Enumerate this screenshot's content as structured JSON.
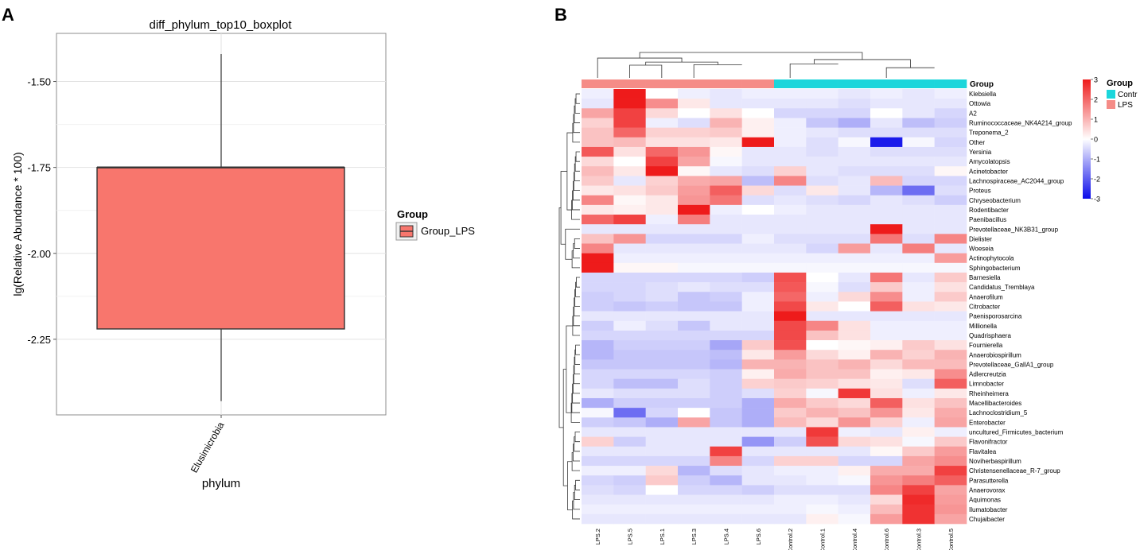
{
  "panel_a": {
    "letter": "A",
    "legend_title": "Group",
    "legend_label": "Group_LPS",
    "box_color": "#F8766D"
  },
  "panel_b": {
    "letter": "B",
    "group_header": "Group",
    "legend_group_title": "Group",
    "legend_items": [
      {
        "label": "Contr",
        "color": "#1BD6DB"
      },
      {
        "label": "LPS",
        "color": "#F58C87"
      }
    ],
    "colorbar_ticks": [
      "3",
      "2",
      "1",
      "0",
      "-1",
      "-2",
      "-3"
    ],
    "colors": {
      "low": "#0B0BEA",
      "mid": "#FFFFFF",
      "high": "#EE1B1B"
    }
  },
  "chart_data": [
    {
      "type": "box",
      "title": "diff_phylum_top10_boxplot",
      "xlabel": "phylum",
      "ylabel": "lg(Relative Abundance * 100)",
      "categories": [
        "Elusimicrobia"
      ],
      "ylim": [
        -2.47,
        -1.36
      ],
      "yticks": [
        -1.5,
        -1.75,
        -2.0,
        -2.25
      ],
      "ytick_labels": [
        "-1.50",
        "-1.75",
        "-2.00",
        "-2.25"
      ],
      "series": [
        {
          "name": "Group_LPS",
          "whisker_low": -2.43,
          "q1": -2.22,
          "median": -1.75,
          "q3": -1.75,
          "whisker_high": -1.42
        }
      ]
    },
    {
      "type": "heatmap",
      "columns": [
        "LPS.2",
        "LPS.5",
        "LPS.1",
        "LPS.3",
        "LPS.4",
        "LPS.6",
        "Control.2",
        "Control.1",
        "Control.4",
        "Control.6",
        "Control.3",
        "Control.5"
      ],
      "column_groups": [
        "LPS",
        "LPS",
        "LPS",
        "LPS",
        "LPS",
        "LPS",
        "Control",
        "Control",
        "Control",
        "Control",
        "Control",
        "Control"
      ],
      "rows": [
        "Klebsiella",
        "Ottowia",
        "A2",
        "Ruminococcaceae_NK4A214_group",
        "Treponema_2",
        "Other",
        "Yersinia",
        "Amycolatopsis",
        "Acinetobacter",
        "Lachnospiraceae_AC2044_group",
        "Proteus",
        "Chryseobacterium",
        "Rodentibacter",
        "Paenibacillus",
        "Prevotellaceae_NK3B31_group",
        "Dielister",
        "Woeseia",
        "Actinophytocola",
        "Sphingobacterium",
        "Barnesiella",
        "Candidatus_Tremblaya",
        "Anaerofilum",
        "Citrobacter",
        "Paenisporosarcina",
        "Millionella",
        "Quadrisphaera",
        "Fournierella",
        "Anaerobiospirillum",
        "Prevotellaceae_GallA1_group",
        "Adlercreutzia",
        "Limnobacter",
        "Rheinheimera",
        "Macellibacteroides",
        "Lachnoclostridium_5",
        "Enterobacter",
        "uncultured_Firmicutes_bacterium",
        "Flavonifractor",
        "Flavitalea",
        "Noviherbaspirillum",
        "Christensenellaceae_R-7_group",
        "Parasutterella",
        "Anaerovorax",
        "Aquimonas",
        "Ilumatobacter",
        "Chujaibacter"
      ],
      "values": [
        [
          -0.2,
          3.0,
          0.0,
          -0.2,
          -0.3,
          -0.2,
          -0.2,
          -0.2,
          -0.3,
          -0.2,
          -0.3,
          -0.2
        ],
        [
          -0.3,
          3.0,
          1.5,
          0.3,
          -0.3,
          -0.3,
          -0.3,
          -0.3,
          -0.4,
          -0.3,
          -0.3,
          -0.3
        ],
        [
          1.2,
          2.5,
          0.5,
          0.0,
          0.4,
          0.0,
          -0.5,
          -0.5,
          -0.5,
          0.0,
          -0.3,
          -0.5
        ],
        [
          0.6,
          2.5,
          -0.2,
          -0.4,
          1.0,
          0.2,
          -0.2,
          -0.7,
          -1.0,
          -0.3,
          -0.8,
          -0.6
        ],
        [
          0.8,
          2.0,
          0.6,
          0.6,
          0.7,
          0.2,
          -0.2,
          -0.3,
          -0.4,
          -0.4,
          -0.4,
          -0.4
        ],
        [
          0.8,
          0.9,
          0.4,
          0.4,
          0.3,
          3.0,
          -0.2,
          -0.4,
          -0.1,
          -2.8,
          -0.1,
          -0.5
        ],
        [
          2.2,
          0.4,
          2.0,
          1.4,
          0.1,
          -0.3,
          -0.3,
          -0.4,
          -0.3,
          -0.4,
          -0.4,
          -0.4
        ],
        [
          0.5,
          0.0,
          2.5,
          1.2,
          -0.1,
          -0.3,
          -0.3,
          -0.3,
          -0.3,
          -0.3,
          -0.3,
          -0.3
        ],
        [
          0.9,
          0.3,
          3.0,
          0.1,
          -0.3,
          -0.4,
          0.6,
          -0.3,
          -0.4,
          -0.4,
          -0.4,
          0.1
        ],
        [
          0.7,
          -0.3,
          0.6,
          1.1,
          1.2,
          -0.8,
          1.6,
          -0.4,
          -0.3,
          0.9,
          -0.5,
          -0.5
        ],
        [
          0.3,
          0.4,
          0.7,
          1.3,
          2.1,
          0.5,
          -0.4,
          0.3,
          -0.3,
          -0.9,
          -1.8,
          -0.4
        ],
        [
          1.6,
          0.1,
          0.3,
          1.4,
          1.8,
          -0.4,
          -0.3,
          -0.4,
          -0.5,
          -0.3,
          -0.4,
          -0.6
        ],
        [
          0.3,
          0.2,
          0.3,
          3.0,
          -0.2,
          0.0,
          -0.2,
          -0.3,
          -0.3,
          -0.3,
          -0.3,
          -0.3
        ],
        [
          2.0,
          2.5,
          -0.2,
          1.7,
          -0.3,
          -0.3,
          -0.3,
          -0.3,
          -0.3,
          -0.3,
          -0.3,
          -0.3
        ],
        [
          -0.3,
          -0.3,
          -0.3,
          -0.3,
          -0.3,
          -0.3,
          -0.3,
          -0.3,
          -0.3,
          3.0,
          -0.3,
          -0.3
        ],
        [
          0.8,
          1.4,
          -0.5,
          -0.5,
          -0.5,
          -0.2,
          -0.4,
          -0.4,
          -0.4,
          1.8,
          -0.4,
          1.6
        ],
        [
          1.6,
          -0.3,
          -0.3,
          -0.3,
          -0.3,
          -0.3,
          -0.3,
          -0.5,
          1.3,
          -0.3,
          1.7,
          -0.3
        ],
        [
          3.0,
          -0.2,
          -0.2,
          -0.2,
          -0.2,
          -0.2,
          -0.2,
          -0.2,
          -0.2,
          -0.2,
          -0.2,
          1.3
        ],
        [
          3.0,
          0.1,
          0.1,
          -0.1,
          -0.1,
          -0.1,
          -0.1,
          -0.1,
          -0.1,
          -0.1,
          -0.1,
          -0.1
        ],
        [
          -0.5,
          -0.5,
          -0.5,
          -0.5,
          -0.5,
          -0.6,
          2.3,
          0.0,
          -0.3,
          1.8,
          -0.3,
          0.7
        ],
        [
          -0.5,
          -0.5,
          -0.4,
          -0.3,
          -0.4,
          -0.4,
          2.2,
          -0.1,
          -0.4,
          0.7,
          -0.2,
          0.4
        ],
        [
          -0.6,
          -0.5,
          -0.4,
          -0.7,
          -0.6,
          -0.2,
          2.0,
          -0.2,
          0.5,
          1.5,
          -0.2,
          0.7
        ],
        [
          -0.6,
          -0.7,
          -0.6,
          -0.7,
          -0.7,
          -0.2,
          2.4,
          0.3,
          0.0,
          2.1,
          0.4,
          0.3
        ],
        [
          -0.3,
          -0.3,
          -0.3,
          -0.3,
          -0.3,
          -0.3,
          3.0,
          -0.3,
          -0.3,
          -0.3,
          -0.3,
          -0.3
        ],
        [
          -0.6,
          -0.2,
          -0.4,
          -0.7,
          -0.3,
          -0.3,
          2.4,
          1.6,
          0.4,
          -0.2,
          -0.2,
          -0.2
        ],
        [
          -0.5,
          -0.5,
          -0.5,
          -0.5,
          -0.5,
          -0.5,
          2.4,
          0.8,
          0.4,
          -0.2,
          -0.2,
          -0.2
        ],
        [
          -0.9,
          -0.6,
          -0.6,
          -0.6,
          -1.1,
          0.7,
          2.3,
          0.0,
          0.1,
          0.2,
          0.7,
          0.4
        ],
        [
          -0.9,
          -0.7,
          -0.7,
          -0.7,
          -0.8,
          0.3,
          1.3,
          0.5,
          0.2,
          1.0,
          0.6,
          1.0
        ],
        [
          -0.7,
          -0.7,
          -0.7,
          -0.7,
          -0.9,
          1.0,
          1.0,
          0.8,
          1.0,
          0.5,
          0.9,
          0.9
        ],
        [
          -0.5,
          -0.5,
          -0.5,
          -0.5,
          -0.6,
          0.2,
          1.1,
          0.8,
          0.8,
          0.2,
          0.3,
          1.5
        ],
        [
          -0.5,
          -0.8,
          -0.8,
          -0.4,
          -0.6,
          0.6,
          0.7,
          0.6,
          0.4,
          0.3,
          -0.4,
          2.1
        ],
        [
          -0.3,
          -0.4,
          -0.4,
          -0.4,
          -0.6,
          -0.4,
          0.6,
          -0.1,
          2.6,
          0.4,
          -0.2,
          0.3
        ],
        [
          -1.0,
          -0.6,
          -0.6,
          -0.6,
          -0.6,
          -1.0,
          1.1,
          0.7,
          0.5,
          2.1,
          0.4,
          0.8
        ],
        [
          -0.1,
          -1.8,
          -0.5,
          0.0,
          -0.7,
          -1.0,
          0.7,
          1.0,
          0.8,
          1.4,
          0.3,
          1.1
        ],
        [
          -0.6,
          -0.7,
          -1.0,
          1.2,
          -0.7,
          -1.0,
          0.9,
          0.5,
          1.4,
          0.6,
          -0.2,
          1.2
        ],
        [
          -0.3,
          -0.3,
          -0.3,
          -0.3,
          -0.3,
          -0.3,
          -0.3,
          2.6,
          -0.2,
          -0.3,
          0.2,
          -0.2
        ],
        [
          0.6,
          -0.6,
          -0.3,
          -0.3,
          -0.3,
          -1.3,
          -0.6,
          2.3,
          0.5,
          0.4,
          -0.1,
          0.7
        ],
        [
          -0.3,
          -0.3,
          -0.3,
          -0.3,
          2.5,
          -0.3,
          -0.3,
          -0.3,
          -0.3,
          0.1,
          0.7,
          1.3
        ],
        [
          -0.5,
          -0.5,
          -0.5,
          -0.5,
          1.6,
          -0.5,
          0.6,
          0.6,
          -0.5,
          -0.5,
          1.2,
          1.5
        ],
        [
          -0.2,
          -0.2,
          0.5,
          -0.9,
          -0.4,
          -0.3,
          -0.2,
          -0.2,
          0.2,
          1.1,
          1.1,
          2.5
        ],
        [
          -0.5,
          -0.6,
          0.7,
          -0.6,
          -0.9,
          -0.3,
          -0.3,
          -0.2,
          -0.1,
          1.4,
          1.7,
          2.1
        ],
        [
          -0.4,
          -0.5,
          0.0,
          -0.5,
          -0.5,
          -0.6,
          -0.4,
          -0.4,
          -0.4,
          1.6,
          2.5,
          1.2
        ],
        [
          -0.3,
          -0.3,
          -0.3,
          -0.3,
          -0.3,
          -0.3,
          -0.2,
          -0.2,
          -0.3,
          0.5,
          2.8,
          1.3
        ],
        [
          -0.2,
          -0.2,
          -0.2,
          -0.2,
          -0.2,
          -0.2,
          -0.2,
          -0.1,
          -0.2,
          0.9,
          2.7,
          1.4
        ],
        [
          -0.3,
          -0.3,
          -0.3,
          -0.3,
          -0.3,
          -0.3,
          -0.3,
          0.2,
          -0.1,
          1.3,
          2.7,
          1.2
        ]
      ],
      "scale": {
        "min": -3,
        "max": 3
      },
      "legend": {
        "title": "Group",
        "entries": [
          "Contr",
          "LPS"
        ]
      }
    }
  ]
}
